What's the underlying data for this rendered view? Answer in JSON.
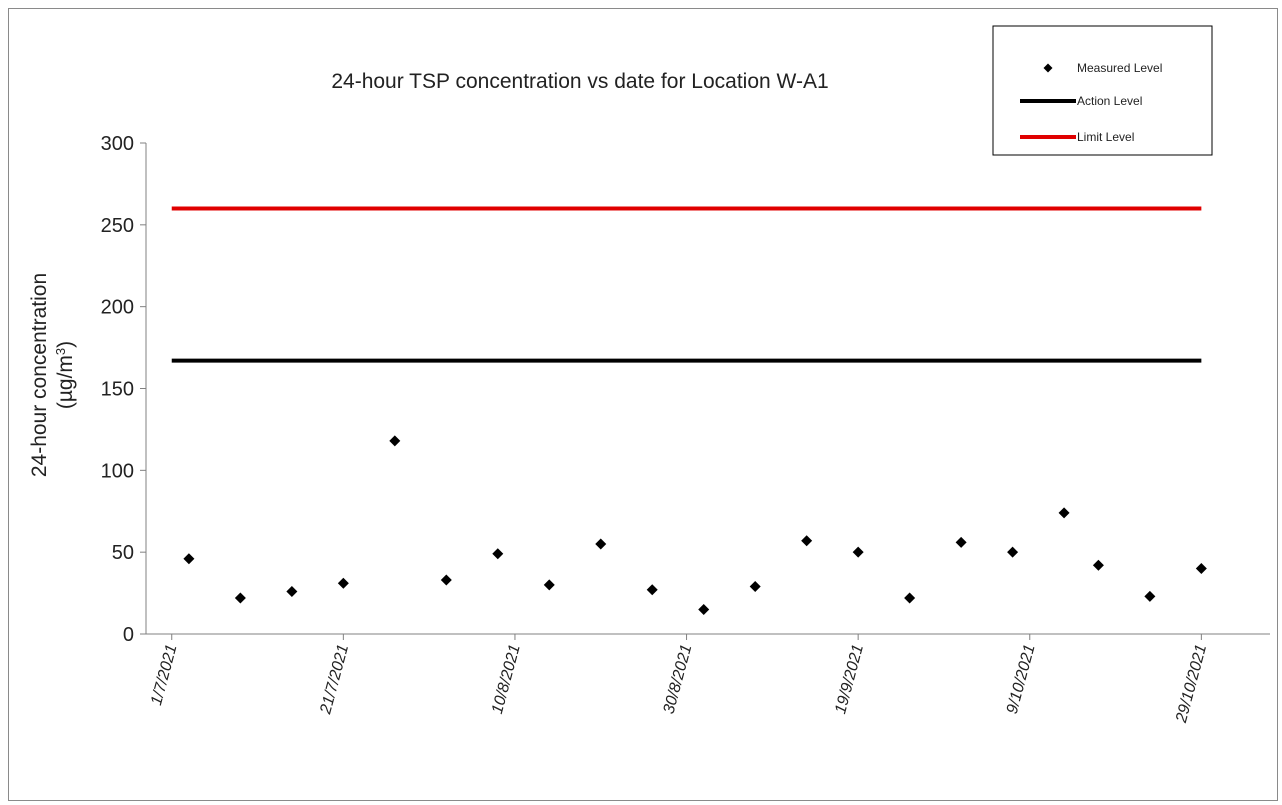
{
  "chart_data": {
    "type": "scatter",
    "title": "24-hour TSP concentration vs date for Location W-A1",
    "ylabel_line1": "24-hour concentration",
    "ylabel_unit_prefix": "(µg/m",
    "ylabel_unit_sup": "3",
    "ylabel_unit_suffix": ")",
    "ylim": [
      0,
      300
    ],
    "yticks": [
      0,
      50,
      100,
      150,
      200,
      250,
      300
    ],
    "xlim": [
      "2021-06-28",
      "2021-11-06"
    ],
    "xticks": [
      {
        "date": "2021-07-01",
        "label": "1/7/2021"
      },
      {
        "date": "2021-07-21",
        "label": "21/7/2021"
      },
      {
        "date": "2021-08-10",
        "label": "10/8/2021"
      },
      {
        "date": "2021-08-30",
        "label": "30/8/2021"
      },
      {
        "date": "2021-09-19",
        "label": "19/9/2021"
      },
      {
        "date": "2021-10-09",
        "label": "9/10/2021"
      },
      {
        "date": "2021-10-29",
        "label": "29/10/2021"
      }
    ],
    "grid": false,
    "legend_position": "top-right",
    "series": [
      {
        "name": "Measured Level",
        "kind": "markers",
        "color": "#000000",
        "points": [
          {
            "x": "2021-07-03",
            "y": 46
          },
          {
            "x": "2021-07-09",
            "y": 22
          },
          {
            "x": "2021-07-15",
            "y": 26
          },
          {
            "x": "2021-07-21",
            "y": 31
          },
          {
            "x": "2021-07-27",
            "y": 118
          },
          {
            "x": "2021-08-02",
            "y": 33
          },
          {
            "x": "2021-08-08",
            "y": 49
          },
          {
            "x": "2021-08-14",
            "y": 30
          },
          {
            "x": "2021-08-20",
            "y": 55
          },
          {
            "x": "2021-08-26",
            "y": 27
          },
          {
            "x": "2021-09-01",
            "y": 15
          },
          {
            "x": "2021-09-07",
            "y": 29
          },
          {
            "x": "2021-09-13",
            "y": 57
          },
          {
            "x": "2021-09-19",
            "y": 50
          },
          {
            "x": "2021-09-25",
            "y": 22
          },
          {
            "x": "2021-10-01",
            "y": 56
          },
          {
            "x": "2021-10-07",
            "y": 50
          },
          {
            "x": "2021-10-13",
            "y": 74
          },
          {
            "x": "2021-10-17",
            "y": 42
          },
          {
            "x": "2021-10-23",
            "y": 23
          },
          {
            "x": "2021-10-29",
            "y": 40
          }
        ]
      },
      {
        "name": "Action Level",
        "kind": "line",
        "color": "#000000",
        "points": [
          {
            "x": "2021-07-01",
            "y": 167
          },
          {
            "x": "2021-10-29",
            "y": 167
          }
        ]
      },
      {
        "name": "Limit Level",
        "kind": "line",
        "color": "#e00000",
        "points": [
          {
            "x": "2021-07-01",
            "y": 260
          },
          {
            "x": "2021-10-29",
            "y": 260
          }
        ]
      }
    ]
  }
}
